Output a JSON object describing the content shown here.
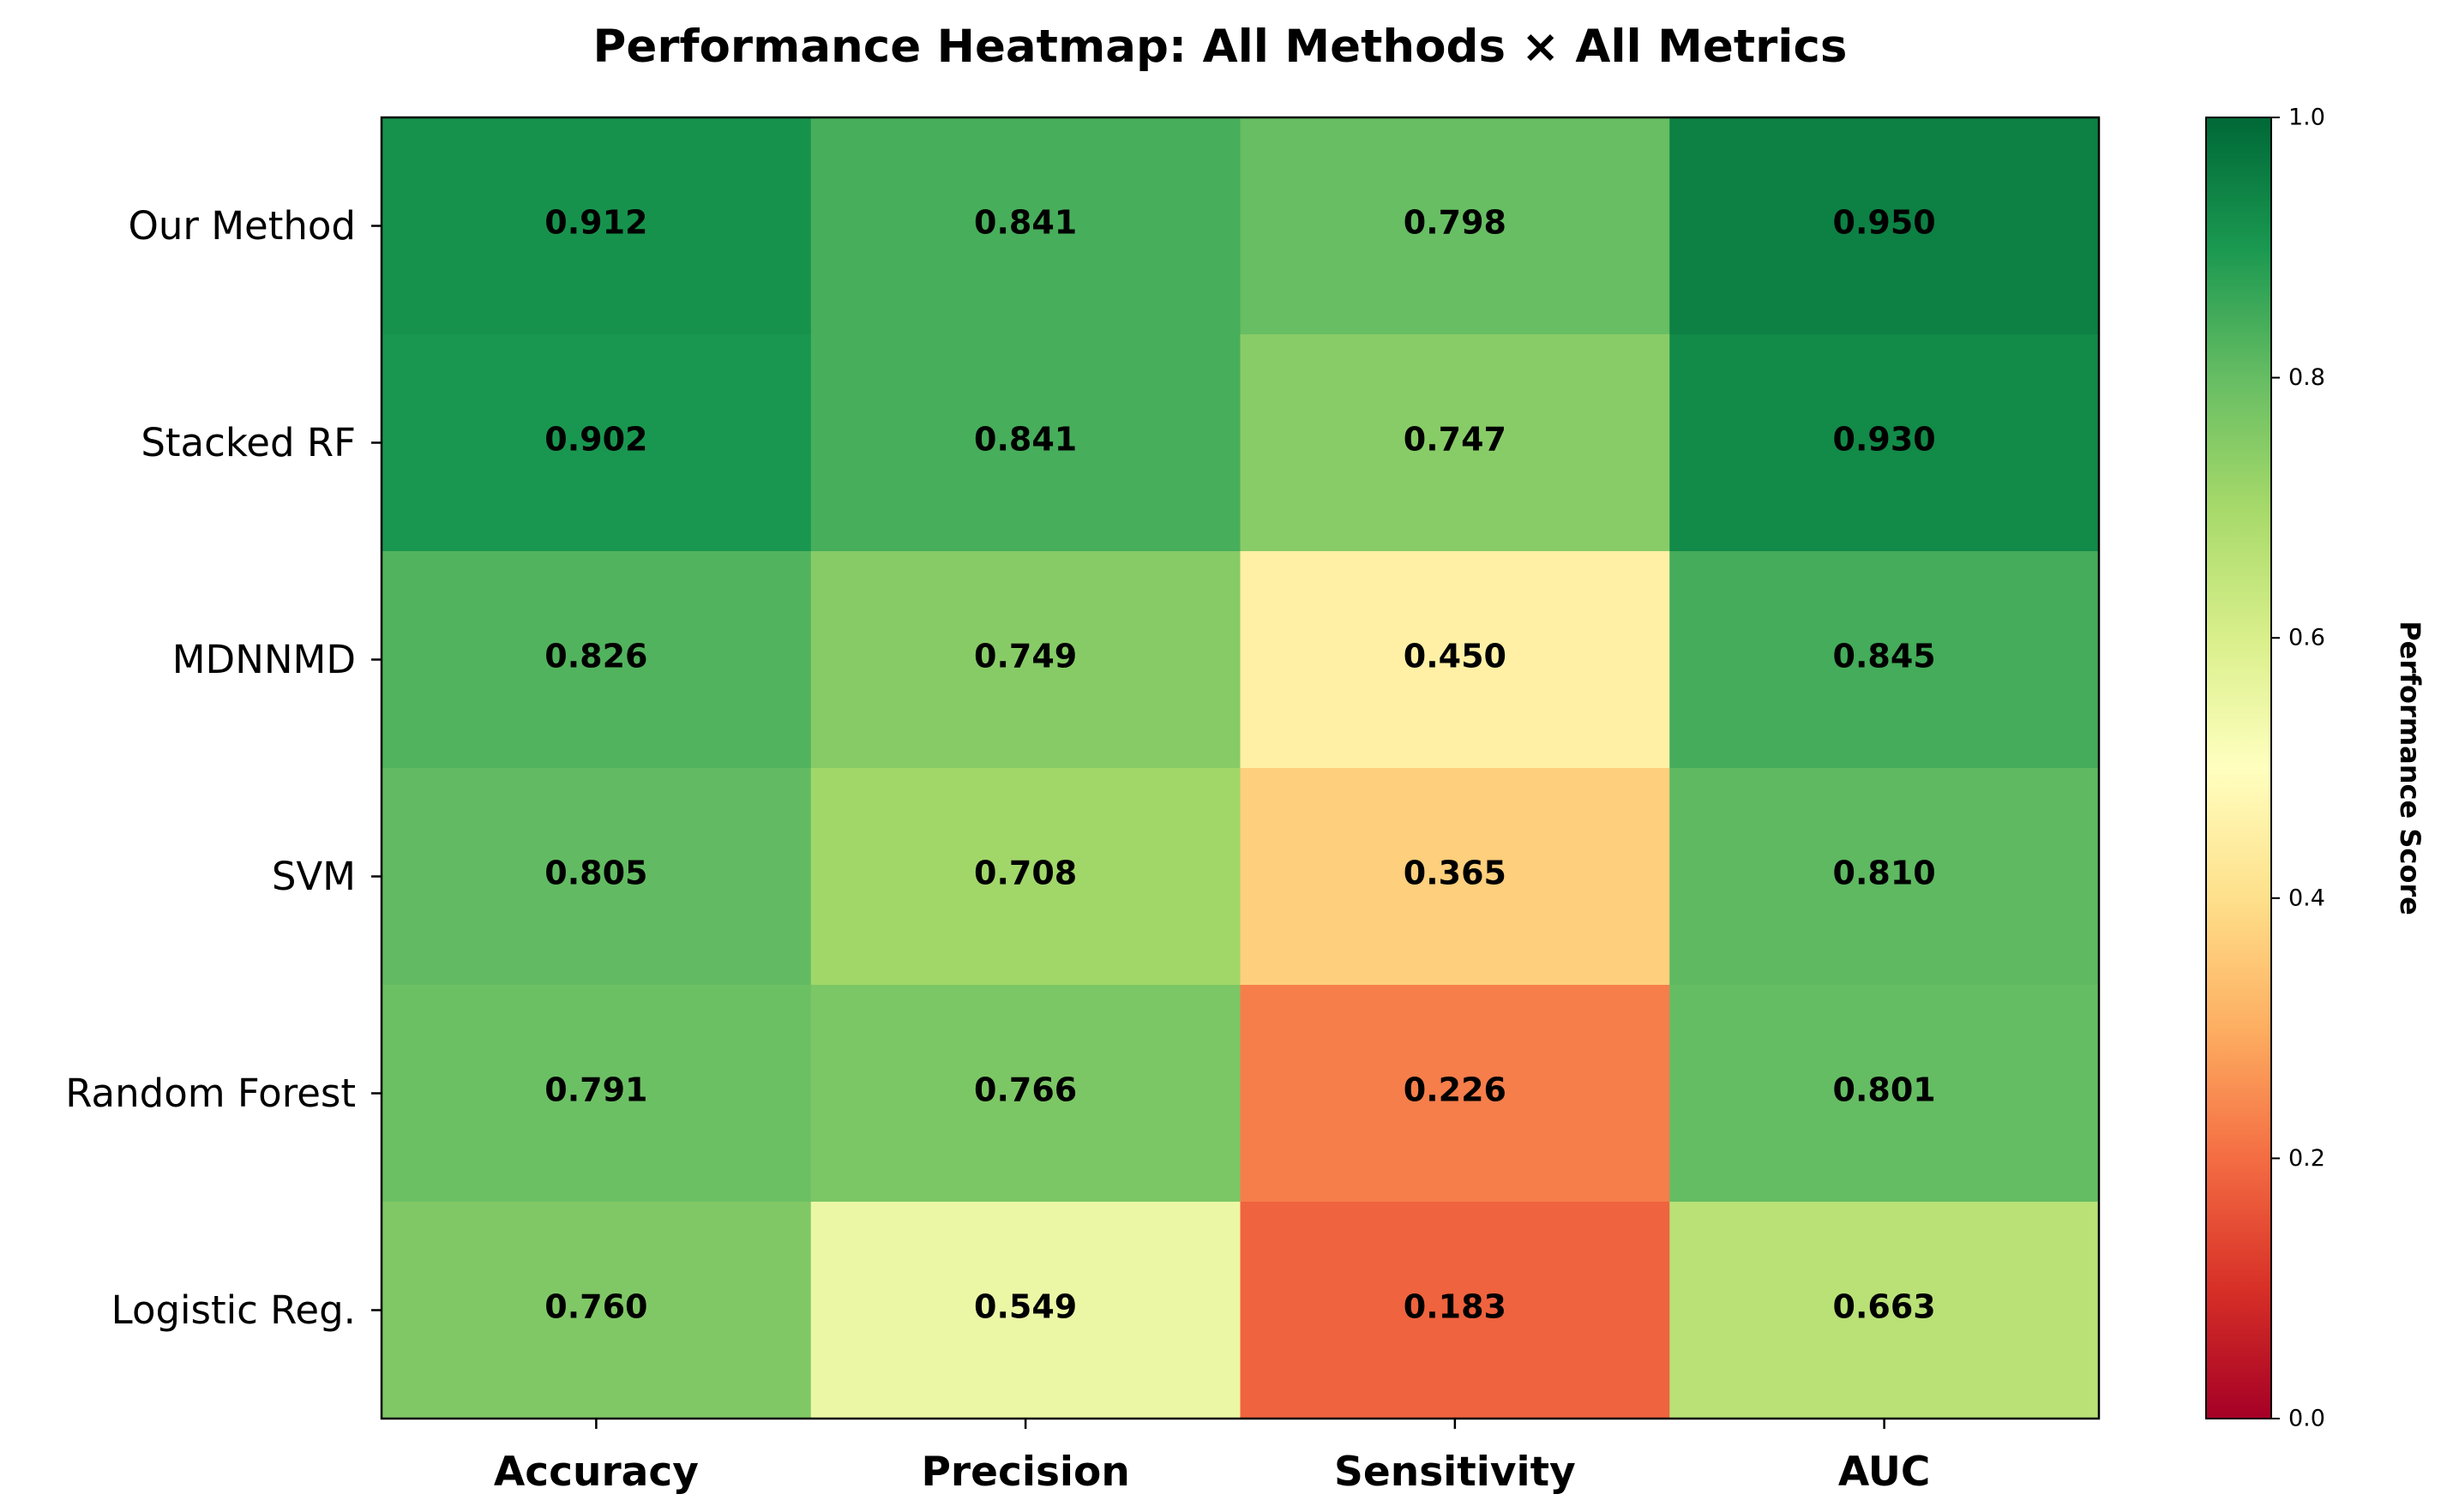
{
  "chart_data": {
    "type": "heatmap",
    "title": "Performance Heatmap: All Methods × All Metrics",
    "rows": [
      "Our Method",
      "Stacked RF",
      "MDNNMD",
      "SVM",
      "Random Forest",
      "Logistic Reg."
    ],
    "columns": [
      "Accuracy",
      "Precision",
      "Sensitivity",
      "AUC"
    ],
    "values": [
      [
        0.912,
        0.841,
        0.798,
        0.95
      ],
      [
        0.902,
        0.841,
        0.747,
        0.93
      ],
      [
        0.826,
        0.749,
        0.45,
        0.845
      ],
      [
        0.805,
        0.708,
        0.365,
        0.81
      ],
      [
        0.791,
        0.766,
        0.226,
        0.801
      ],
      [
        0.76,
        0.549,
        0.183,
        0.663
      ]
    ],
    "value_labels": [
      [
        "0.912",
        "0.841",
        "0.798",
        "0.950"
      ],
      [
        "0.902",
        "0.841",
        "0.747",
        "0.930"
      ],
      [
        "0.826",
        "0.749",
        "0.450",
        "0.845"
      ],
      [
        "0.805",
        "0.708",
        "0.365",
        "0.810"
      ],
      [
        "0.791",
        "0.766",
        "0.226",
        "0.801"
      ],
      [
        "0.760",
        "0.549",
        "0.183",
        "0.663"
      ]
    ],
    "colorscale": "RdYlGn",
    "vmin": 0.0,
    "vmax": 1.0,
    "colorbar": {
      "label": "Performance Score",
      "ticks": [
        "0.0",
        "0.2",
        "0.4",
        "0.6",
        "0.8",
        "1.0"
      ]
    }
  }
}
